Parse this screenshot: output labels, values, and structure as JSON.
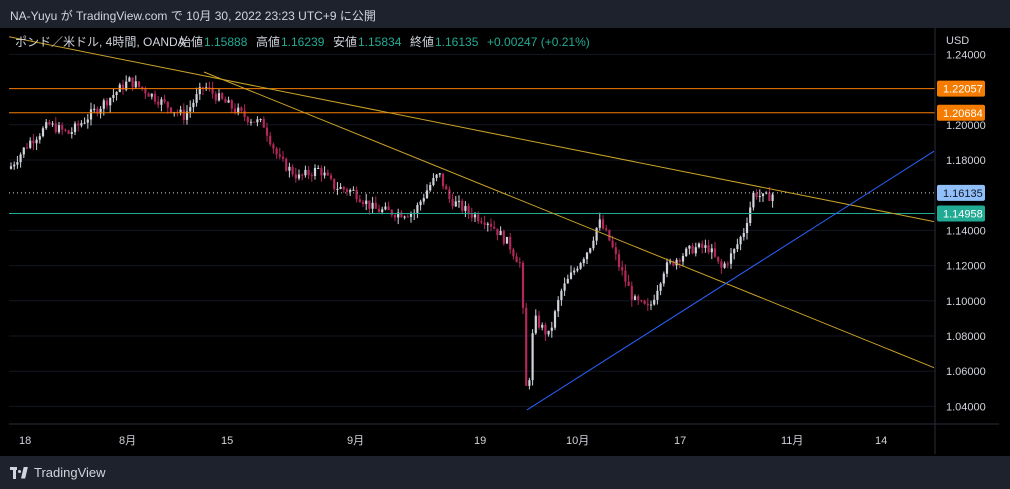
{
  "header": {
    "text": "NA-Yuyu が TradingView.com で 10月 30, 2022 23:23 UTC+9 に公開"
  },
  "footer": {
    "brand": "TradingView"
  },
  "chart_data": {
    "type": "candlestick",
    "instrument": "ポンド／米ドル, 4時間, OANDA",
    "ohlc": {
      "open_label": "始値",
      "open": "1.15888",
      "high_label": "高値",
      "high": "1.16239",
      "low_label": "安値",
      "low": "1.15834",
      "close_label": "終値",
      "close": "1.16135",
      "change": "+0.00247 (+0.21%)"
    },
    "currency": "USD",
    "y_ticks": [
      "1.24000",
      "1.20000",
      "1.18000",
      "1.14000",
      "1.12000",
      "1.10000",
      "1.08000",
      "1.06000",
      "1.04000"
    ],
    "ylim": [
      1.03,
      1.255
    ],
    "x_ticks": [
      "18",
      "8月",
      "15",
      "9月",
      "19",
      "10月",
      "17",
      "11月",
      "14"
    ],
    "price_levels": [
      {
        "label": "1.22057",
        "value": 1.22057,
        "color": "#f57c00"
      },
      {
        "label": "1.20684",
        "value": 1.20684,
        "color": "#f57c00"
      },
      {
        "label": "1.16135",
        "value": 1.16135,
        "color": "#90bff9"
      },
      {
        "label": "1.14958",
        "value": 1.14958,
        "color": "#22ab94"
      }
    ],
    "trendlines": [
      {
        "color": "#c9a227",
        "points": [
          [
            0,
            1.25
          ],
          [
            925,
            1.145
          ]
        ]
      },
      {
        "color": "#c9a227",
        "points": [
          [
            195,
            1.23
          ],
          [
            925,
            1.062
          ]
        ]
      },
      {
        "color": "#2962ff",
        "points": [
          [
            518,
            1.038
          ],
          [
            925,
            1.185
          ]
        ]
      }
    ],
    "price_path": [
      [
        0,
        1.175
      ],
      [
        20,
        1.19
      ],
      [
        40,
        1.2
      ],
      [
        60,
        1.195
      ],
      [
        80,
        1.205
      ],
      [
        100,
        1.215
      ],
      [
        120,
        1.225
      ],
      [
        135,
        1.22
      ],
      [
        155,
        1.212
      ],
      [
        175,
        1.205
      ],
      [
        195,
        1.222
      ],
      [
        210,
        1.215
      ],
      [
        235,
        1.205
      ],
      [
        255,
        1.2
      ],
      [
        270,
        1.18
      ],
      [
        290,
        1.17
      ],
      [
        310,
        1.175
      ],
      [
        325,
        1.165
      ],
      [
        345,
        1.162
      ],
      [
        365,
        1.152
      ],
      [
        385,
        1.15
      ],
      [
        405,
        1.15
      ],
      [
        420,
        1.165
      ],
      [
        430,
        1.172
      ],
      [
        440,
        1.158
      ],
      [
        460,
        1.15
      ],
      [
        480,
        1.145
      ],
      [
        500,
        1.132
      ],
      [
        512,
        1.12
      ],
      [
        518,
        1.04
      ],
      [
        525,
        1.09
      ],
      [
        540,
        1.08
      ],
      [
        552,
        1.105
      ],
      [
        568,
        1.12
      ],
      [
        580,
        1.13
      ],
      [
        590,
        1.145
      ],
      [
        600,
        1.135
      ],
      [
        610,
        1.12
      ],
      [
        625,
        1.1
      ],
      [
        640,
        1.095
      ],
      [
        655,
        1.118
      ],
      [
        670,
        1.125
      ],
      [
        685,
        1.13
      ],
      [
        700,
        1.13
      ],
      [
        712,
        1.118
      ],
      [
        725,
        1.128
      ],
      [
        735,
        1.14
      ],
      [
        745,
        1.162
      ],
      [
        755,
        1.158
      ],
      [
        765,
        1.161
      ]
    ]
  }
}
